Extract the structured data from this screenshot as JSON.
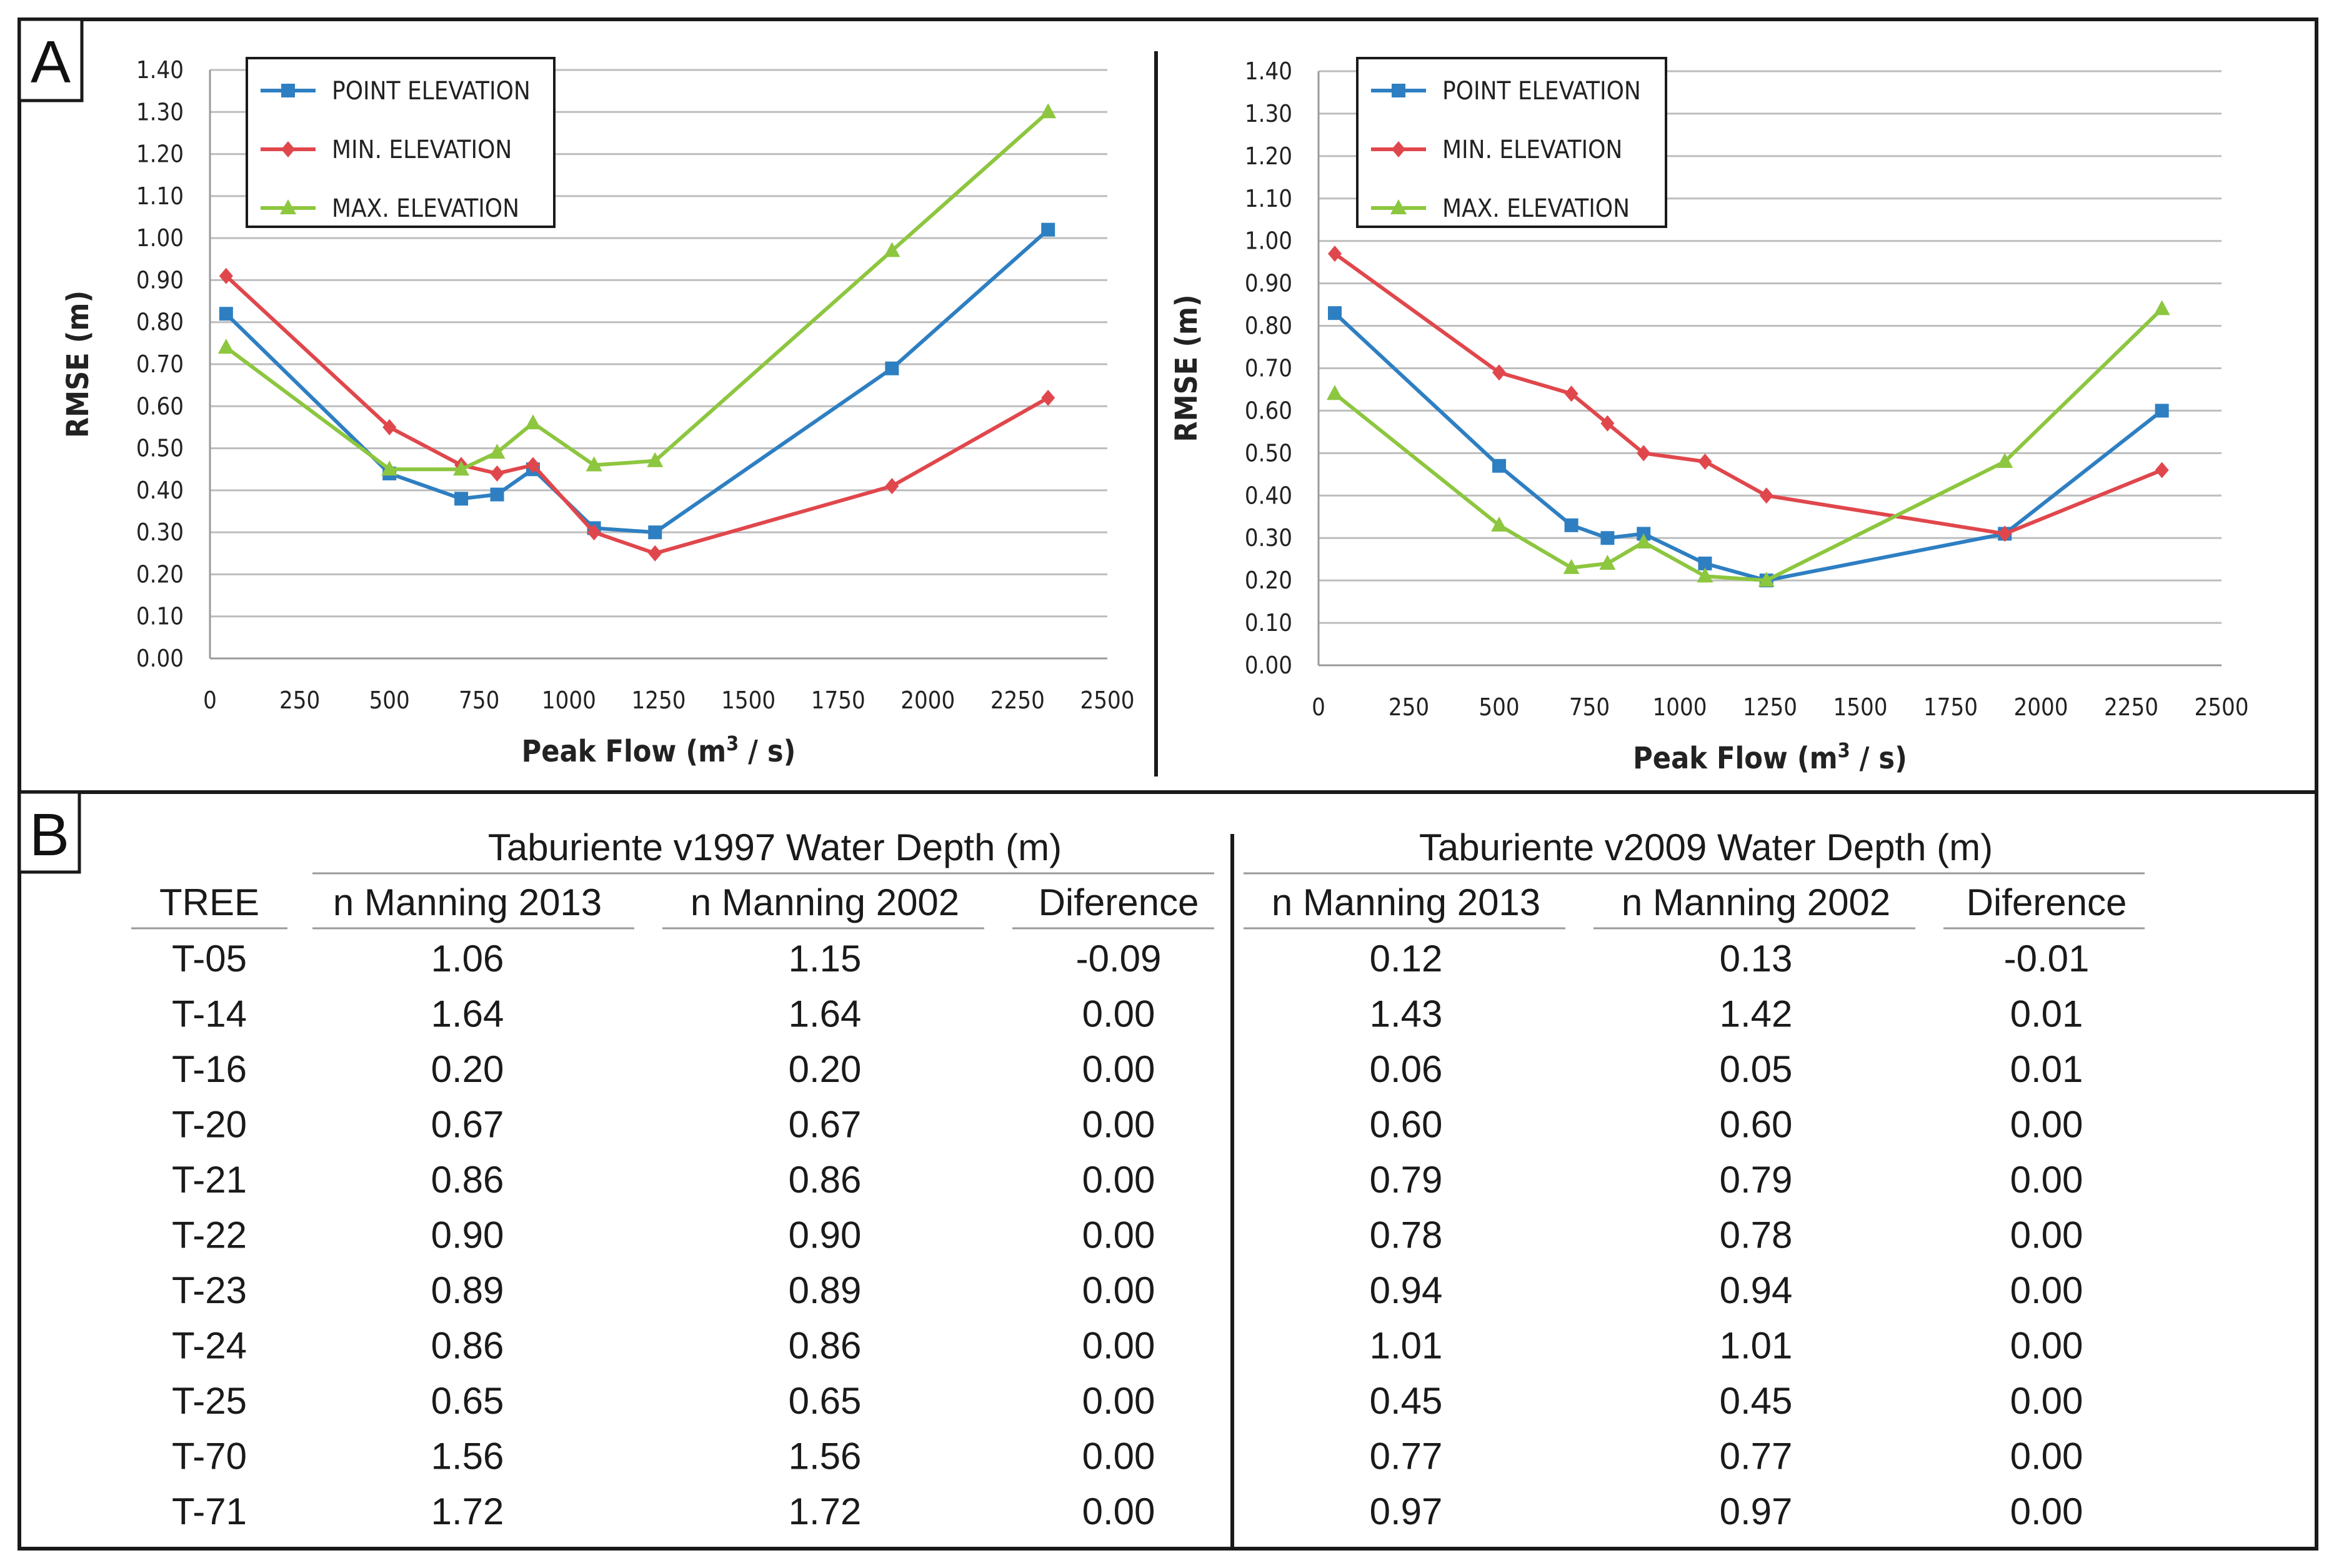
{
  "panels": {
    "a_tag": "A",
    "b_tag": "B"
  },
  "colors": {
    "point": "#2e7fc2",
    "min": "#e0474c",
    "max": "#8dc63f",
    "grid": "#bdbdbd",
    "frame": "#1a1a1a"
  },
  "chart_data": [
    {
      "type": "line",
      "xlabel_main": "Peak Flow (m",
      "xlabel_sup": "3",
      "xlabel_tail": " / s)",
      "ylabel": "RMSE (m)",
      "xlim": [
        0,
        2500
      ],
      "ylim": [
        0,
        1.4
      ],
      "xticks": [
        "0",
        "250",
        "500",
        "750",
        "1000",
        "1250",
        "1500",
        "1750",
        "2000",
        "2250",
        "2500"
      ],
      "yticks": [
        "0.00",
        "0.10",
        "0.20",
        "0.30",
        "0.40",
        "0.50",
        "0.60",
        "0.70",
        "0.80",
        "0.90",
        "1.00",
        "1.10",
        "1.20",
        "1.30",
        "1.40"
      ],
      "grid": true,
      "legend_position": "top-left",
      "series": [
        {
          "name": "POINT ELEVATION",
          "marker": "square",
          "x": [
            45,
            500,
            700,
            800,
            900,
            1070,
            1240,
            1900,
            2335
          ],
          "y": [
            0.82,
            0.44,
            0.38,
            0.39,
            0.45,
            0.31,
            0.3,
            0.69,
            1.02
          ]
        },
        {
          "name": "MIN. ELEVATION",
          "marker": "diamond",
          "x": [
            45,
            500,
            700,
            800,
            900,
            1070,
            1240,
            1900,
            2335
          ],
          "y": [
            0.91,
            0.55,
            0.46,
            0.44,
            0.46,
            0.3,
            0.25,
            0.41,
            0.62
          ]
        },
        {
          "name": "MAX. ELEVATION",
          "marker": "triangle",
          "x": [
            45,
            500,
            700,
            800,
            900,
            1070,
            1240,
            1900,
            2335
          ],
          "y": [
            0.74,
            0.45,
            0.45,
            0.49,
            0.56,
            0.46,
            0.47,
            0.97,
            1.3
          ]
        }
      ]
    },
    {
      "type": "line",
      "xlabel_main": "Peak Flow (m",
      "xlabel_sup": "3",
      "xlabel_tail": " / s)",
      "ylabel": "RMSE (m)",
      "xlim": [
        0,
        2500
      ],
      "ylim": [
        0,
        1.4
      ],
      "xticks": [
        "0",
        "250",
        "500",
        "750",
        "1000",
        "1250",
        "1500",
        "1750",
        "2000",
        "2250",
        "2500"
      ],
      "yticks": [
        "0.00",
        "0.10",
        "0.20",
        "0.30",
        "0.40",
        "0.50",
        "0.60",
        "0.70",
        "0.80",
        "0.90",
        "1.00",
        "1.10",
        "1.20",
        "1.30",
        "1.40"
      ],
      "grid": true,
      "legend_position": "top-left",
      "series": [
        {
          "name": "POINT ELEVATION",
          "marker": "square",
          "x": [
            45,
            500,
            700,
            800,
            900,
            1070,
            1240,
            1900,
            2335
          ],
          "y": [
            0.83,
            0.47,
            0.33,
            0.3,
            0.31,
            0.24,
            0.2,
            0.31,
            0.6
          ]
        },
        {
          "name": "MIN. ELEVATION",
          "marker": "diamond",
          "x": [
            45,
            500,
            700,
            800,
            900,
            1070,
            1240,
            1900,
            2335
          ],
          "y": [
            0.97,
            0.69,
            0.64,
            0.57,
            0.5,
            0.48,
            0.4,
            0.31,
            0.46
          ]
        },
        {
          "name": "MAX. ELEVATION",
          "marker": "triangle",
          "x": [
            45,
            500,
            700,
            800,
            900,
            1070,
            1240,
            1900,
            2335
          ],
          "y": [
            0.64,
            0.33,
            0.23,
            0.24,
            0.29,
            0.21,
            0.2,
            0.48,
            0.84
          ]
        }
      ]
    },
    {
      "type": "table",
      "group_1997": "Taburiente v1997 Water Depth (m)",
      "group_2009": "Taburiente v2009 Water Depth (m)",
      "columns": [
        "TREE",
        "n Manning 2013",
        "n Manning 2002",
        "Diference",
        "n Manning 2013",
        "n Manning 2002",
        "Diference"
      ],
      "rows": [
        [
          "T-05",
          "1.06",
          "1.15",
          "-0.09",
          "0.12",
          "0.13",
          "-0.01"
        ],
        [
          "T-14",
          "1.64",
          "1.64",
          "0.00",
          "1.43",
          "1.42",
          "0.01"
        ],
        [
          "T-16",
          "0.20",
          "0.20",
          "0.00",
          "0.06",
          "0.05",
          "0.01"
        ],
        [
          "T-20",
          "0.67",
          "0.67",
          "0.00",
          "0.60",
          "0.60",
          "0.00"
        ],
        [
          "T-21",
          "0.86",
          "0.86",
          "0.00",
          "0.79",
          "0.79",
          "0.00"
        ],
        [
          "T-22",
          "0.90",
          "0.90",
          "0.00",
          "0.78",
          "0.78",
          "0.00"
        ],
        [
          "T-23",
          "0.89",
          "0.89",
          "0.00",
          "0.94",
          "0.94",
          "0.00"
        ],
        [
          "T-24",
          "0.86",
          "0.86",
          "0.00",
          "1.01",
          "1.01",
          "0.00"
        ],
        [
          "T-25",
          "0.65",
          "0.65",
          "0.00",
          "0.45",
          "0.45",
          "0.00"
        ],
        [
          "T-70",
          "1.56",
          "1.56",
          "0.00",
          "0.77",
          "0.77",
          "0.00"
        ],
        [
          "T-71",
          "1.72",
          "1.72",
          "0.00",
          "0.97",
          "0.97",
          "0.00"
        ]
      ]
    }
  ]
}
